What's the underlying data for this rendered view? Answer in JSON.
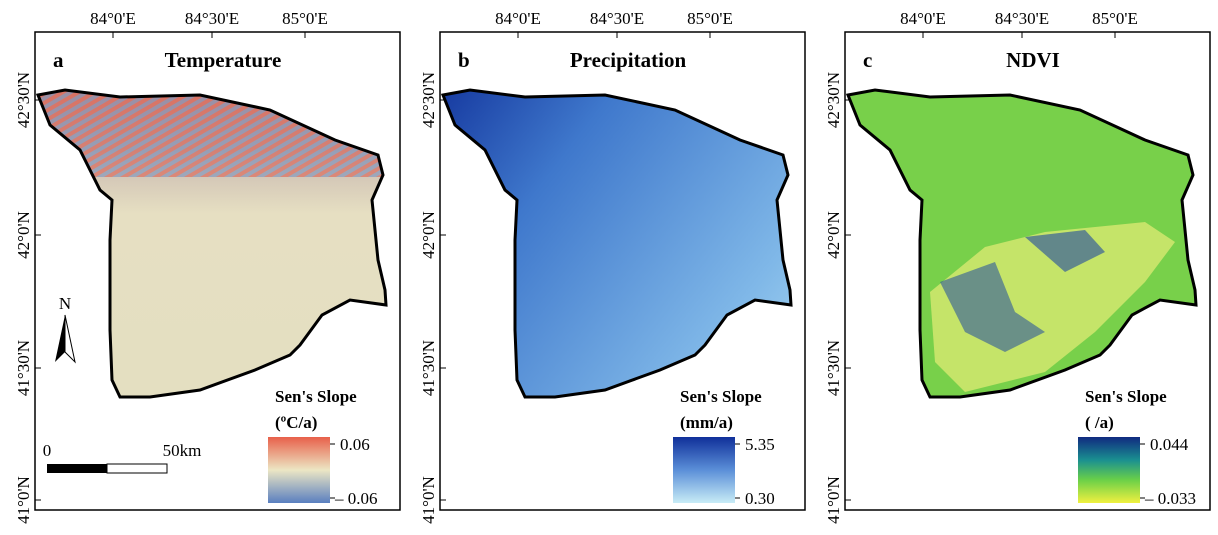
{
  "panels": [
    {
      "letter": "a",
      "title": "Temperature",
      "legend": {
        "title": "Sen's Slope",
        "unit": "(ºC/a)",
        "max": "0.06",
        "min": "– 0.06"
      },
      "lon_ticks": [
        "84°0'E",
        "84°30'E",
        "85°0'E"
      ],
      "lat_ticks": [
        "42°30'N",
        "42°0'N",
        "41°30'N",
        "41°0'N"
      ]
    },
    {
      "letter": "b",
      "title": "Precipitation",
      "legend": {
        "title": "Sen's Slope",
        "unit": "(mm/a)",
        "max": "5.35",
        "min": "0.30"
      },
      "lon_ticks": [
        "84°0'E",
        "84°30'E",
        "85°0'E"
      ],
      "lat_ticks": [
        "42°30'N",
        "42°0'N",
        "41°30'N",
        "41°0'N"
      ]
    },
    {
      "letter": "c",
      "title": "NDVI",
      "legend": {
        "title": "Sen's Slope",
        "unit": "( /a)",
        "max": "0.044",
        "min": "– 0.033"
      },
      "lon_ticks": [
        "84°0'E",
        "84°30'E",
        "85°0'E"
      ],
      "lat_ticks": [
        "42°30'N",
        "42°0'N",
        "41°30'N",
        "41°0'N"
      ]
    }
  ],
  "north_arrow": "N",
  "scale_bar": {
    "start": "0",
    "end": "50km"
  }
}
